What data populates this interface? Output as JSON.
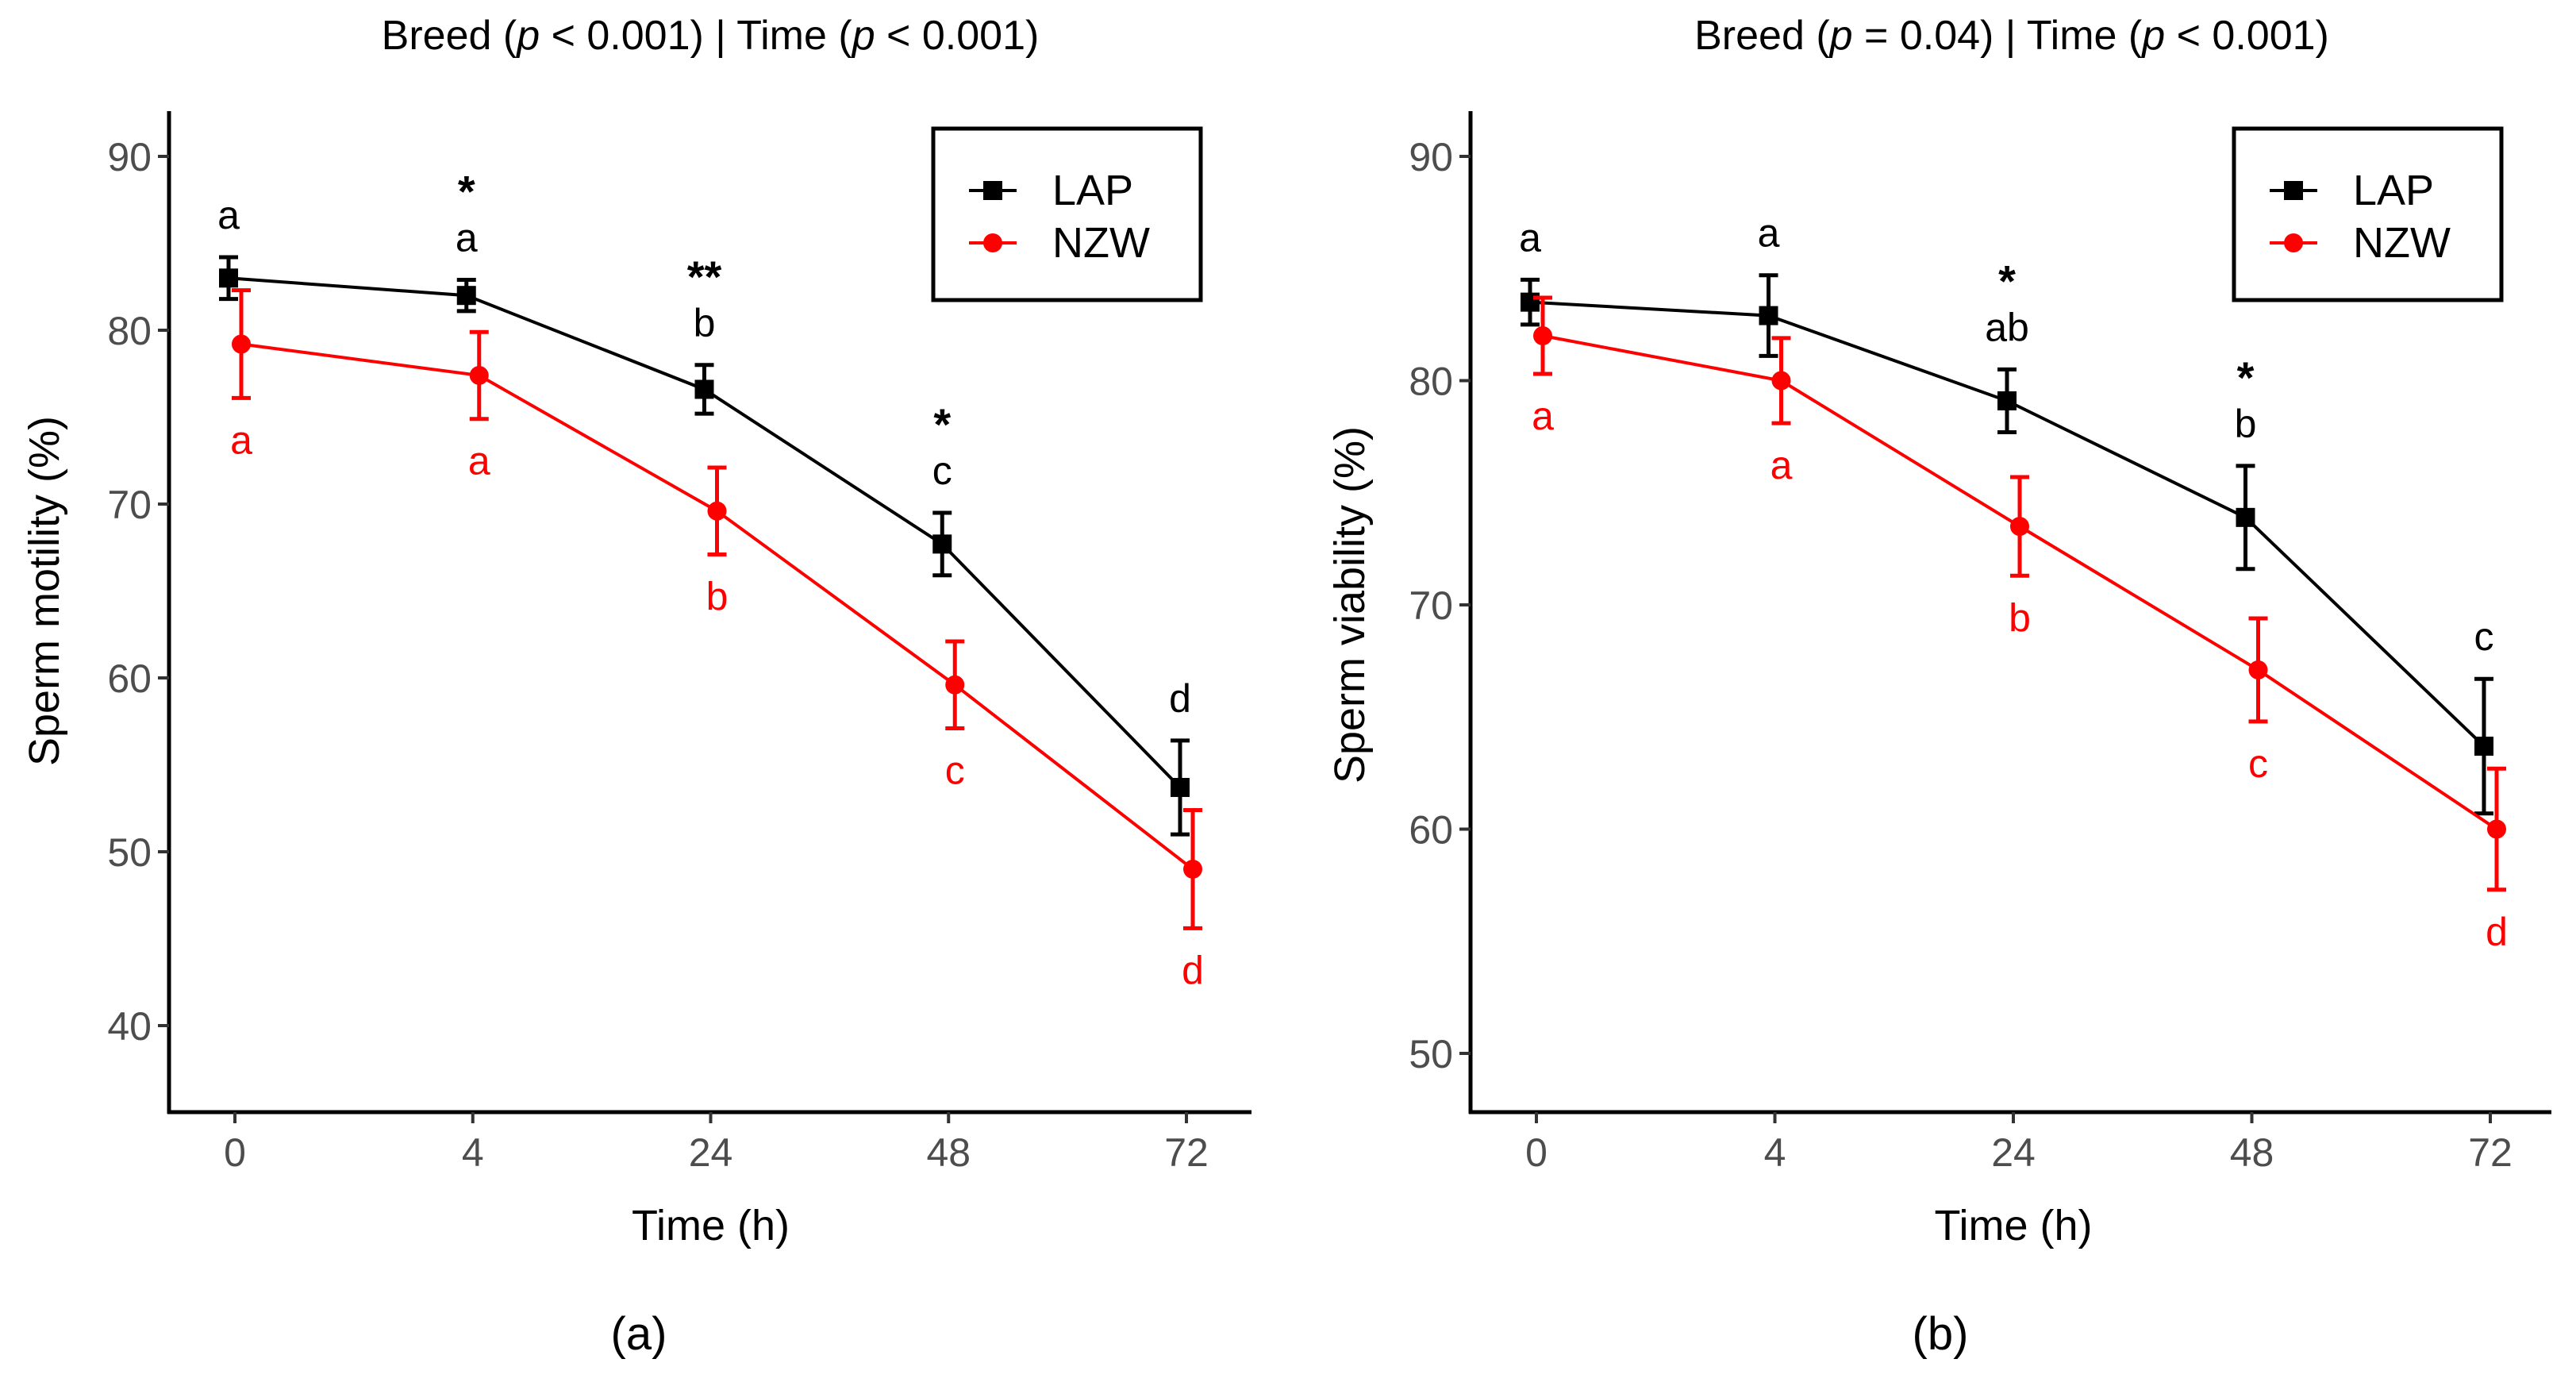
{
  "chart_data": [
    {
      "type": "line",
      "panel_label": "(a)",
      "title": "Breed (p < 0.001) | Time (p < 0.001)",
      "xlabel": "Time (h)",
      "ylabel": "Sperm motility (%)",
      "categories": [
        "0",
        "4",
        "24",
        "48",
        "72"
      ],
      "yticks": [
        40,
        50,
        60,
        70,
        80,
        90
      ],
      "ylim": [
        35,
        92.5
      ],
      "legend_position": "top-right",
      "series": [
        {
          "name": "LAP",
          "color": "#000000",
          "marker": "square",
          "values": [
            83.0,
            82.0,
            76.6,
            67.7,
            53.7
          ],
          "errors": [
            1.2,
            0.9,
            1.4,
            1.8,
            2.7
          ],
          "letters": [
            "a",
            "a",
            "b",
            "c",
            "d"
          ],
          "stars": [
            "",
            "*",
            "**",
            "*",
            ""
          ]
        },
        {
          "name": "NZW",
          "color": "#ff0000",
          "marker": "circle",
          "values": [
            79.2,
            77.4,
            69.6,
            59.6,
            49.0
          ],
          "errors": [
            3.1,
            2.5,
            2.5,
            2.5,
            3.4
          ],
          "letters": [
            "a",
            "a",
            "b",
            "c",
            "d"
          ]
        }
      ]
    },
    {
      "type": "line",
      "panel_label": "(b)",
      "title": "Breed (p = 0.04) | Time (p < 0.001)",
      "xlabel": "Time (h)",
      "ylabel": "Sperm viability (%)",
      "categories": [
        "0",
        "4",
        "24",
        "48",
        "72"
      ],
      "yticks": [
        50,
        60,
        70,
        80,
        90
      ],
      "ylim": [
        47.5,
        92
      ],
      "legend_position": "top-right",
      "series": [
        {
          "name": "LAP",
          "color": "#000000",
          "marker": "square",
          "values": [
            83.5,
            82.9,
            79.1,
            73.9,
            63.7
          ],
          "errors": [
            1.0,
            1.8,
            1.4,
            2.3,
            3.0
          ],
          "letters": [
            "a",
            "a",
            "ab",
            "b",
            "c"
          ],
          "stars": [
            "",
            "",
            "*",
            "*",
            ""
          ]
        },
        {
          "name": "NZW",
          "color": "#ff0000",
          "marker": "circle",
          "values": [
            82.0,
            80.0,
            73.5,
            67.1,
            60.0
          ],
          "errors": [
            1.7,
            1.9,
            2.2,
            2.3,
            2.7
          ],
          "letters": [
            "a",
            "a",
            "b",
            "c",
            "d"
          ]
        }
      ]
    }
  ]
}
